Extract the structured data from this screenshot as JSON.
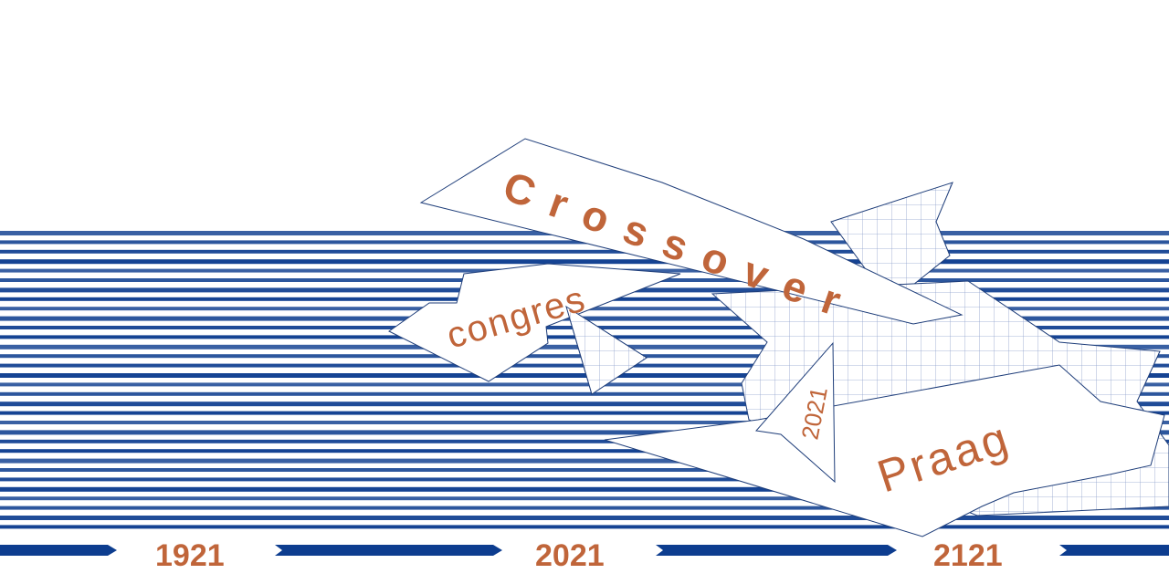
{
  "poster": {
    "title": "Crossover",
    "subtitle": "congres",
    "year": "2021",
    "city": "Praag"
  },
  "timeline": {
    "years": [
      "1921",
      "2021",
      "2121"
    ]
  },
  "colors": {
    "stripe_blue": "#0d3d8f",
    "text_orange": "#c0653a",
    "grid_blue": "#7f95c4"
  }
}
